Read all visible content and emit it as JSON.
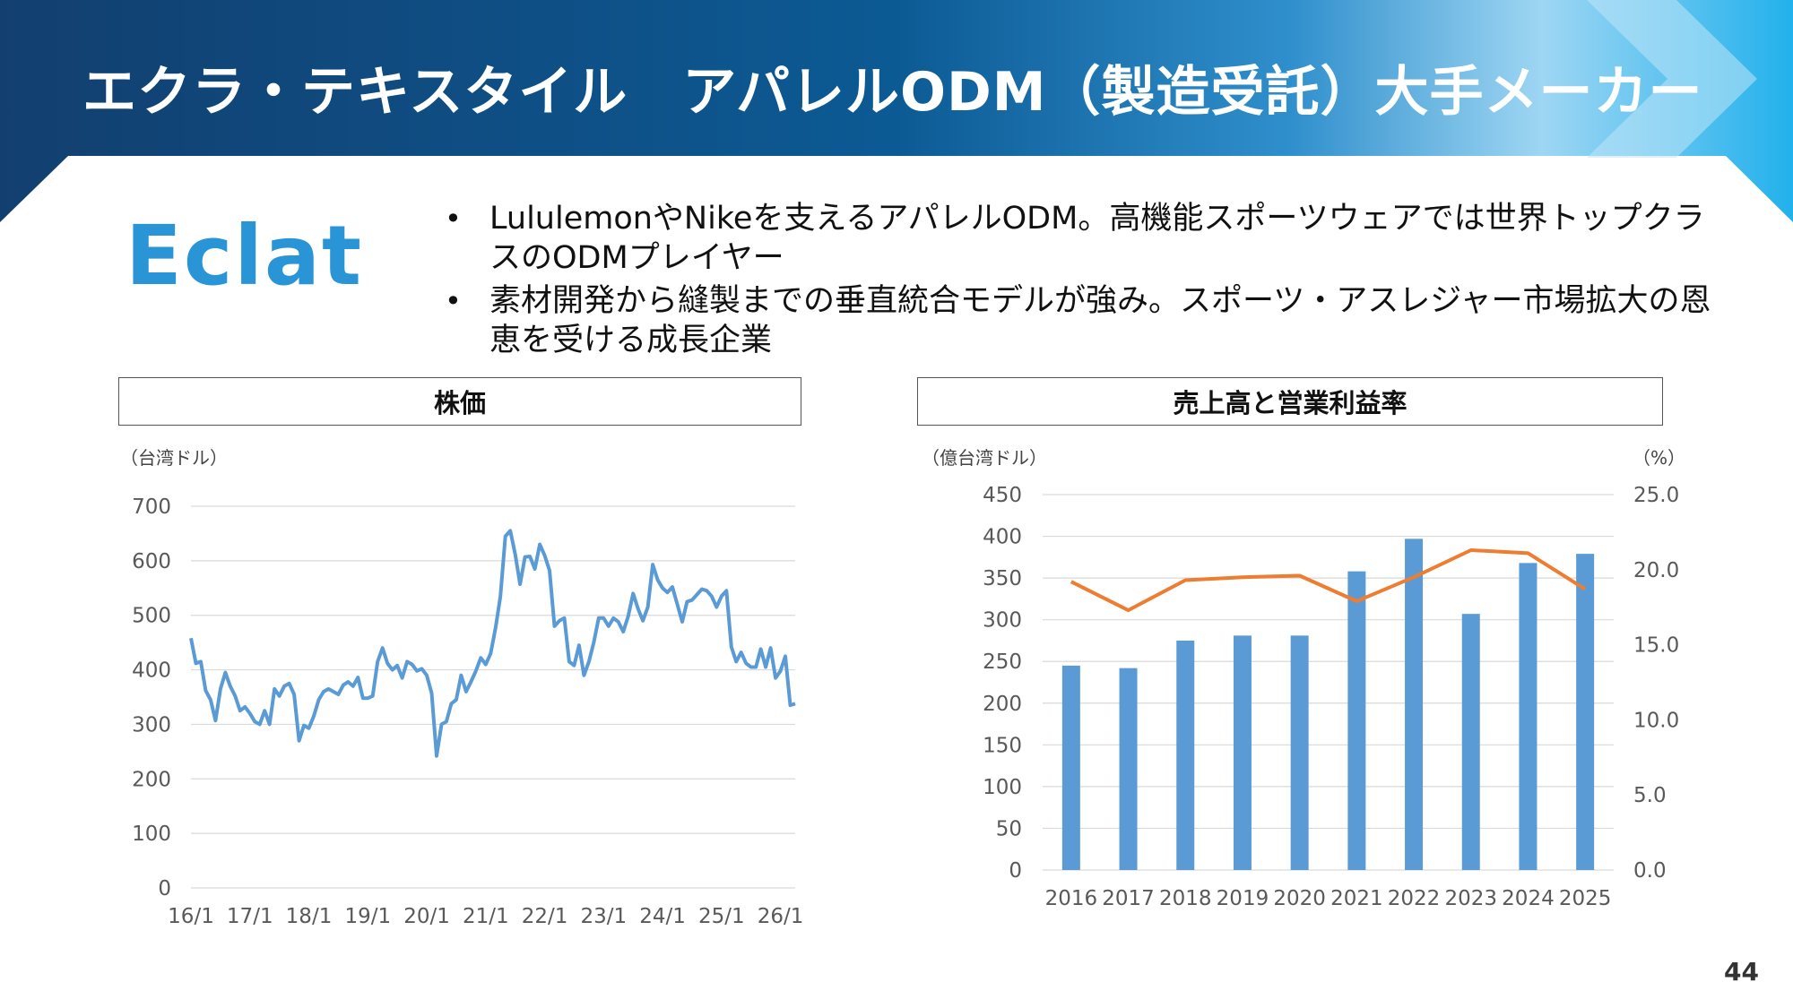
{
  "header": {
    "title": "エクラ・テキスタイル　アパレルODM（製造受託）大手メーカー"
  },
  "logo": {
    "text": "Eclat"
  },
  "bullets": [
    "LululemonやNikeを支えるアパレルODM。高機能スポーツウェアでは世界トップクラスのODMプレイヤー",
    "素材開発から縫製までの垂直統合モデルが強み。スポーツ・アスレジャー市場拡大の恩恵を受ける成長企業"
  ],
  "panels": {
    "price_title": "株価",
    "sales_title": "売上高と営業利益率"
  },
  "page_number": "44",
  "colors": {
    "header_dark": "#123f6f",
    "header_light": "#22b1ec",
    "price_line": "#5b9bd5",
    "bar": "#5b9bd5",
    "margin_line": "#ed7d31"
  },
  "chart_data": [
    {
      "type": "line",
      "title": "株価",
      "ylabel": "（台湾ドル）",
      "ylim": [
        0,
        700
      ],
      "yticks": [
        0,
        100,
        200,
        300,
        400,
        500,
        600,
        700
      ],
      "xtick_labels": [
        "16/1",
        "17/1",
        "18/1",
        "19/1",
        "20/1",
        "21/1",
        "22/1",
        "23/1",
        "24/1",
        "25/1",
        "26/1"
      ],
      "grid": true,
      "series": [
        {
          "values": [
            458,
            412,
            415,
            362,
            345,
            307,
            365,
            395,
            370,
            352,
            325,
            332,
            320,
            305,
            300,
            325,
            300,
            365,
            352,
            370,
            375,
            355,
            270,
            298,
            293,
            315,
            345,
            360,
            365,
            360,
            355,
            372,
            378,
            370,
            386,
            348,
            348,
            352,
            415,
            440,
            412,
            400,
            408,
            385,
            415,
            410,
            398,
            402,
            390,
            357,
            242,
            300,
            305,
            338,
            345,
            390,
            360,
            378,
            398,
            422,
            410,
            430,
            476,
            535,
            645,
            655,
            612,
            557,
            607,
            608,
            585,
            630,
            610,
            582,
            480,
            490,
            495,
            415,
            408,
            445,
            390,
            415,
            450,
            495,
            495,
            480,
            495,
            488,
            470,
            498,
            540,
            512,
            490,
            515,
            593,
            565,
            550,
            542,
            552,
            520,
            488,
            525,
            528,
            538,
            548,
            545,
            535,
            515,
            535,
            545,
            442,
            415,
            432,
            412,
            405,
            405,
            438,
            405,
            440,
            385,
            398,
            425,
            335,
            338
          ]
        }
      ]
    },
    {
      "type": "bar",
      "title": "売上高と営業利益率",
      "categories": [
        "2016",
        "2017",
        "2018",
        "2019",
        "2020",
        "2021",
        "2022",
        "2023",
        "2024",
        "2025"
      ],
      "ylabel": "（億台湾ドル）",
      "ylim": [
        0,
        450
      ],
      "yticks": [
        0,
        50,
        100,
        150,
        200,
        250,
        300,
        350,
        400,
        450
      ],
      "y2label": "（%）",
      "y2lim": [
        0,
        25
      ],
      "y2ticks": [
        "0.0",
        "5.0",
        "10.0",
        "15.0",
        "20.0",
        "25.0"
      ],
      "grid": true,
      "series": [
        {
          "type": "bar",
          "axis": "left",
          "values": [
            245,
            242,
            275,
            281,
            281,
            358,
            397,
            307,
            368,
            379
          ]
        },
        {
          "type": "line",
          "axis": "right",
          "values": [
            19.2,
            17.3,
            19.3,
            19.5,
            19.6,
            17.9,
            19.5,
            21.3,
            21.1,
            18.7
          ]
        }
      ]
    }
  ]
}
